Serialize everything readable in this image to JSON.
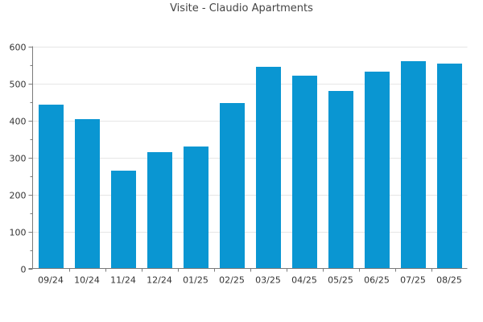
{
  "chart_data": {
    "type": "bar",
    "title": "Visite - Claudio Apartments",
    "categories": [
      "09/24",
      "10/24",
      "11/24",
      "12/24",
      "01/25",
      "02/25",
      "03/25",
      "04/25",
      "05/25",
      "06/25",
      "07/25",
      "08/25"
    ],
    "series": [
      {
        "values": [
          442,
          403,
          264,
          314,
          329,
          446,
          544,
          520,
          479,
          531,
          559,
          553
        ]
      }
    ],
    "xlabel": "",
    "ylabel": "",
    "ylim": [
      0,
      600
    ],
    "yticks": [
      0,
      100,
      200,
      300,
      400,
      500,
      600
    ],
    "grid": true,
    "legend": "none",
    "colors": {
      "bar": "#0a96d2",
      "grid": "#e6e6e6",
      "axis": "#7a7a7a"
    }
  }
}
